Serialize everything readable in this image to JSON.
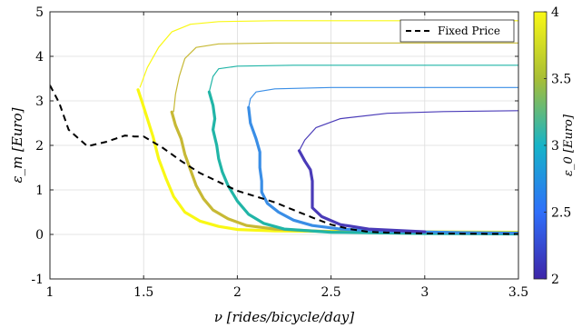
{
  "chart_data": {
    "type": "line",
    "xlabel": "ν [rides/bicycle/day]",
    "ylabel": "ε_m [Euro]",
    "xlim": [
      1,
      3.5
    ],
    "ylim": [
      -1,
      5
    ],
    "xticks": [
      1,
      1.5,
      2,
      2.5,
      3,
      3.5
    ],
    "xtick_labels": [
      "1",
      "1.5",
      "2",
      "2.5",
      "3",
      "3.5"
    ],
    "yticks": [
      -1,
      0,
      1,
      2,
      3,
      4,
      5
    ],
    "ytick_labels": [
      "-1",
      "0",
      "1",
      "2",
      "3",
      "4",
      "5"
    ],
    "grid": true,
    "legend": {
      "placement": "top-right",
      "entries": [
        "Fixed Price"
      ]
    },
    "colorbar": {
      "label": "ε_0 [Euro]",
      "range": [
        2,
        4
      ],
      "ticks": [
        2,
        2.5,
        3,
        3.5,
        4
      ],
      "tick_labels": [
        "2",
        "2.5",
        "3",
        "3.5",
        "4"
      ],
      "colors": [
        "#3e26a8",
        "#2f6ffa",
        "#16b4c8",
        "#a8be35",
        "#f9f815"
      ]
    },
    "fixed_price_series": {
      "name": "Fixed Price",
      "color": "#000000",
      "style": "dashed",
      "points": [
        [
          1.0,
          3.35
        ],
        [
          1.05,
          2.95
        ],
        [
          1.1,
          2.35
        ],
        [
          1.2,
          1.98
        ],
        [
          1.3,
          2.08
        ],
        [
          1.4,
          2.22
        ],
        [
          1.45,
          2.2
        ],
        [
          1.5,
          2.2
        ],
        [
          1.6,
          1.95
        ],
        [
          1.7,
          1.65
        ],
        [
          1.8,
          1.38
        ],
        [
          1.9,
          1.18
        ],
        [
          2.0,
          0.98
        ],
        [
          2.1,
          0.85
        ],
        [
          2.2,
          0.72
        ],
        [
          2.3,
          0.55
        ],
        [
          2.4,
          0.38
        ],
        [
          2.5,
          0.22
        ],
        [
          2.6,
          0.12
        ],
        [
          2.7,
          0.06
        ],
        [
          2.8,
          0.04
        ],
        [
          3.0,
          0.02
        ],
        [
          3.5,
          0.01
        ]
      ]
    },
    "series": [
      {
        "eps0": 4.0,
        "color": "#f9f815",
        "thin_points": [
          [
            1.48,
            3.3
          ],
          [
            1.52,
            3.75
          ],
          [
            1.58,
            4.2
          ],
          [
            1.65,
            4.55
          ],
          [
            1.75,
            4.72
          ],
          [
            1.9,
            4.78
          ],
          [
            2.2,
            4.8
          ],
          [
            2.8,
            4.8
          ],
          [
            3.5,
            4.8
          ]
        ],
        "thick_points": [
          [
            1.47,
            3.25
          ],
          [
            1.49,
            3.0
          ],
          [
            1.52,
            2.6
          ],
          [
            1.55,
            2.2
          ],
          [
            1.58,
            1.7
          ],
          [
            1.62,
            1.25
          ],
          [
            1.66,
            0.85
          ],
          [
            1.72,
            0.5
          ],
          [
            1.8,
            0.3
          ],
          [
            1.9,
            0.18
          ],
          [
            2.0,
            0.11
          ],
          [
            2.2,
            0.08
          ],
          [
            2.5,
            0.07
          ],
          [
            3.0,
            0.06
          ],
          [
            3.5,
            0.05
          ]
        ]
      },
      {
        "eps0": 3.6,
        "color": "#c7b935",
        "thin_points": [
          [
            1.66,
            2.75
          ],
          [
            1.67,
            3.15
          ],
          [
            1.69,
            3.55
          ],
          [
            1.72,
            3.95
          ],
          [
            1.78,
            4.2
          ],
          [
            1.9,
            4.28
          ],
          [
            2.2,
            4.3
          ],
          [
            3.0,
            4.3
          ],
          [
            3.5,
            4.3
          ]
        ],
        "thick_points": [
          [
            1.65,
            2.75
          ],
          [
            1.67,
            2.45
          ],
          [
            1.7,
            2.15
          ],
          [
            1.72,
            1.8
          ],
          [
            1.75,
            1.45
          ],
          [
            1.78,
            1.1
          ],
          [
            1.82,
            0.8
          ],
          [
            1.87,
            0.55
          ],
          [
            1.95,
            0.35
          ],
          [
            2.05,
            0.2
          ],
          [
            2.2,
            0.12
          ],
          [
            2.5,
            0.06
          ],
          [
            3.0,
            0.03
          ],
          [
            3.5,
            0.02
          ]
        ]
      },
      {
        "eps0": 3.2,
        "color": "#21b5a7",
        "thin_points": [
          [
            1.85,
            3.2
          ],
          [
            1.87,
            3.55
          ],
          [
            1.9,
            3.72
          ],
          [
            2.0,
            3.78
          ],
          [
            2.3,
            3.8
          ],
          [
            3.0,
            3.8
          ],
          [
            3.5,
            3.8
          ]
        ],
        "thick_points": [
          [
            1.85,
            3.2
          ],
          [
            1.87,
            2.9
          ],
          [
            1.88,
            2.6
          ],
          [
            1.87,
            2.35
          ],
          [
            1.89,
            2.0
          ],
          [
            1.9,
            1.7
          ],
          [
            1.92,
            1.4
          ],
          [
            1.95,
            1.1
          ],
          [
            2.0,
            0.75
          ],
          [
            2.06,
            0.45
          ],
          [
            2.14,
            0.25
          ],
          [
            2.25,
            0.12
          ],
          [
            2.5,
            0.05
          ],
          [
            3.0,
            0.02
          ],
          [
            3.5,
            0.01
          ]
        ]
      },
      {
        "eps0": 2.8,
        "color": "#3a8ee6",
        "thin_points": [
          [
            2.06,
            2.85
          ],
          [
            2.07,
            3.05
          ],
          [
            2.1,
            3.2
          ],
          [
            2.2,
            3.27
          ],
          [
            2.5,
            3.3
          ],
          [
            3.0,
            3.3
          ],
          [
            3.5,
            3.3
          ]
        ],
        "thick_points": [
          [
            2.06,
            2.85
          ],
          [
            2.07,
            2.5
          ],
          [
            2.1,
            2.15
          ],
          [
            2.12,
            1.85
          ],
          [
            2.12,
            1.5
          ],
          [
            2.13,
            1.2
          ],
          [
            2.13,
            0.95
          ],
          [
            2.16,
            0.7
          ],
          [
            2.22,
            0.5
          ],
          [
            2.3,
            0.32
          ],
          [
            2.4,
            0.2
          ],
          [
            2.55,
            0.12
          ],
          [
            2.8,
            0.07
          ],
          [
            3.2,
            0.04
          ],
          [
            3.5,
            0.03
          ]
        ]
      },
      {
        "eps0": 2.4,
        "color": "#4a3bb8",
        "thin_points": [
          [
            2.33,
            1.88
          ],
          [
            2.36,
            2.12
          ],
          [
            2.42,
            2.4
          ],
          [
            2.55,
            2.6
          ],
          [
            2.8,
            2.72
          ],
          [
            3.1,
            2.76
          ],
          [
            3.5,
            2.78
          ]
        ],
        "thick_points": [
          [
            2.33,
            1.88
          ],
          [
            2.36,
            1.65
          ],
          [
            2.39,
            1.45
          ],
          [
            2.4,
            1.2
          ],
          [
            2.4,
            0.9
          ],
          [
            2.4,
            0.6
          ],
          [
            2.45,
            0.4
          ],
          [
            2.55,
            0.22
          ],
          [
            2.7,
            0.12
          ],
          [
            2.9,
            0.08
          ],
          [
            3.0,
            0.06
          ]
        ]
      }
    ]
  }
}
